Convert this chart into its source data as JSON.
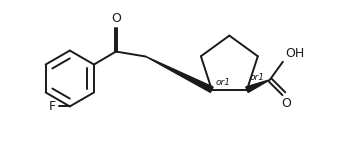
{
  "bg_color": "#ffffff",
  "line_color": "#1a1a1a",
  "line_width": 1.4,
  "font_size_label": 9,
  "font_size_stereo": 6.5,
  "figsize": [
    3.59,
    1.41
  ],
  "dpi": 100,
  "xlim": [
    -0.1,
    3.5
  ],
  "ylim": [
    -0.1,
    1.3
  ]
}
